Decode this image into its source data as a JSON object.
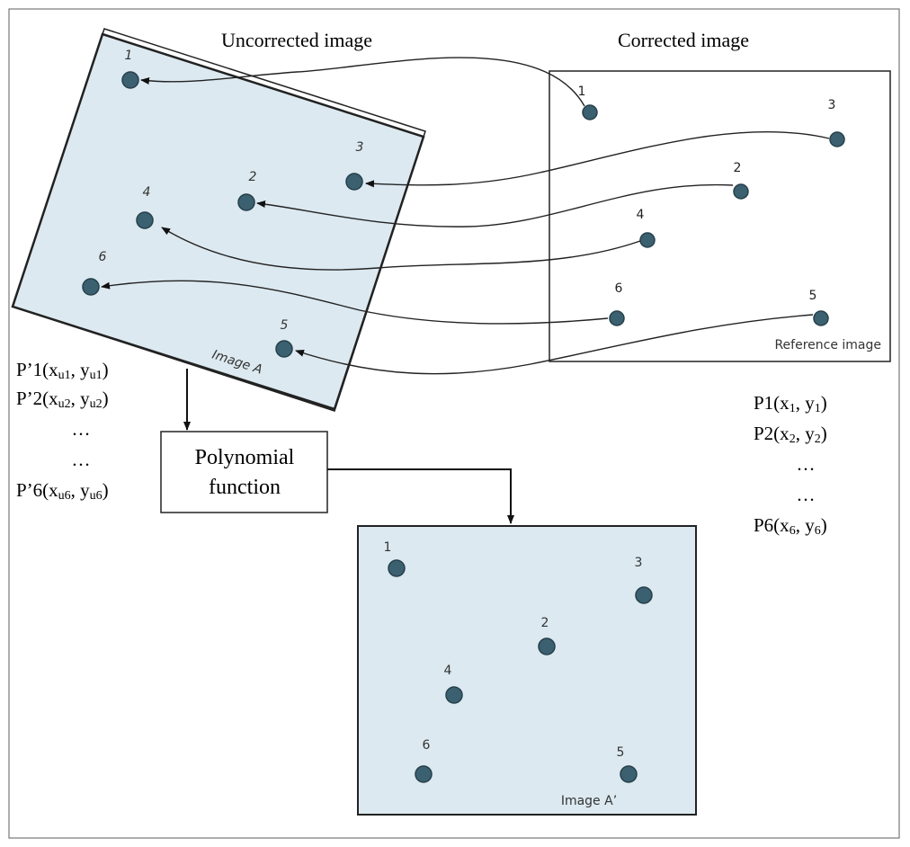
{
  "labels": {
    "uncorrected_title": "Uncorrected image",
    "corrected_title": "Corrected image",
    "image_a_caption": "Image A",
    "reference_caption": "Reference image",
    "image_a_prime_caption": "Image A’",
    "polynomial_line1": "Polynomial",
    "polynomial_line2": "function"
  },
  "uncorrected_points": [
    {
      "prefix": "P’1(x",
      "sub_x": "u1",
      "mid": ", y",
      "sub_y": "u1",
      "suffix": ")"
    },
    {
      "prefix": "P’2(x",
      "sub_x": "u2",
      "mid": ", y",
      "sub_y": "u2",
      "suffix": ")"
    },
    {
      "prefix": "…",
      "sub_x": "",
      "mid": "",
      "sub_y": "",
      "suffix": ""
    },
    {
      "prefix": "…",
      "sub_x": "",
      "mid": "",
      "sub_y": "",
      "suffix": ""
    },
    {
      "prefix": "P’6(x",
      "sub_x": "u6",
      "mid": ", y",
      "sub_y": "u6",
      "suffix": ")"
    }
  ],
  "corrected_points": [
    {
      "prefix": "P1(x",
      "sub_x": "1",
      "mid": ", y",
      "sub_y": "1",
      "suffix": ")"
    },
    {
      "prefix": "P2(x",
      "sub_x": "2",
      "mid": ", y",
      "sub_y": "2",
      "suffix": ")"
    },
    {
      "prefix": "…",
      "sub_x": "",
      "mid": "",
      "sub_y": "",
      "suffix": ""
    },
    {
      "prefix": "…",
      "sub_x": "",
      "mid": "",
      "sub_y": "",
      "suffix": ""
    },
    {
      "prefix": "P6(x",
      "sub_x": "6",
      "mid": ", y",
      "sub_y": "6",
      "suffix": ")"
    }
  ],
  "point_numbers": [
    "1",
    "2",
    "3",
    "4",
    "5",
    "6"
  ],
  "colors": {
    "image_fill": "#dce9f0",
    "point_fill": "#3b6070",
    "line": "#222222"
  }
}
